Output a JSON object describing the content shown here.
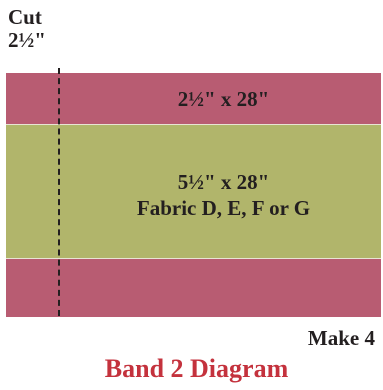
{
  "cut_label": {
    "line1": "Cut",
    "line2": "2½\""
  },
  "bands": {
    "top": {
      "label": "2½\" x 28\""
    },
    "middle": {
      "size": "5½\" x 28\"",
      "fabric": "Fabric D, E, F or G"
    }
  },
  "quantity_label": "Make 4",
  "title": "Band 2 Diagram",
  "colors": {
    "band_pink": "#b85c72",
    "band_green": "#b1b56b",
    "title_red": "#c4323d",
    "text_dark": "#231f20"
  }
}
